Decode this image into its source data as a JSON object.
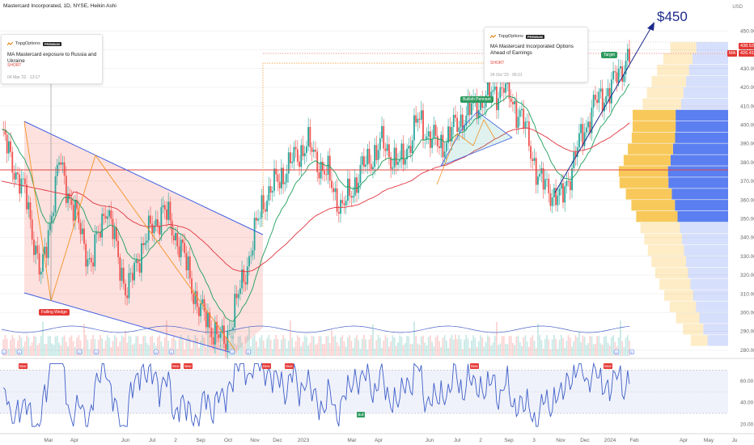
{
  "header": {
    "title": "Mastercard Incorporated, 1D, NYSE, Heikin Ashi",
    "currency": "USD"
  },
  "cards": [
    {
      "brand": "TopgOptions",
      "badge": "PREMIUM",
      "title": "MA Mastercard exposure to Russia and Ukraine",
      "side": "SHORT",
      "date": "04 Mar '22 · 13:17"
    },
    {
      "brand": "TopgOptions",
      "badge": "PREMIUM",
      "title": "MA Mastercard Incorporated Options Ahead of Earnings",
      "side": "SHORT",
      "date": "24 Oct '23 · 09:21"
    }
  ],
  "annotations": {
    "target_price": "$450",
    "falling_wedge": "Falling Wedge",
    "bullish_pennant": "Bullish Pennant",
    "target": "Target"
  },
  "price_tags": {
    "last": "438.53",
    "ma_label": "MA",
    "ma_value": "426.41"
  },
  "rsi_tags": {
    "bear": "Bear",
    "bull": "Bull"
  },
  "colors": {
    "up": "#26a69a",
    "down": "#ef5350",
    "ema_short": "#1b9e5a",
    "ema_long": "#e0343d",
    "wedge": "#3f5fe0",
    "zigzag": "#f39221",
    "rsi": "#3f5fc8",
    "vp_up": "#5b7ff0",
    "vp_down": "#f8c95a"
  },
  "chart_data": [
    {
      "type": "candlestick",
      "title": "Mastercard Incorporated, 1D, NYSE, Heikin Ashi",
      "x_ticks": [
        "Mar",
        "Apr",
        "Jun",
        "Jul",
        "2",
        "Sep",
        "Oct",
        "Nov",
        "Dec",
        "2023",
        "Mar",
        "Apr",
        "Jun",
        "Jul",
        "2",
        "Sep",
        "3",
        "Nov",
        "Dec",
        "2024",
        "Feb",
        "Apr",
        "May",
        "Ju"
      ],
      "y_ticks": [
        280,
        290,
        300,
        310,
        320,
        330,
        340,
        350,
        360,
        370,
        380,
        390,
        400,
        410,
        420,
        430,
        440,
        450
      ],
      "ylim": [
        276,
        457
      ],
      "price_path": {
        "x_index": [
          0,
          14,
          22,
          32,
          50,
          58,
          70,
          78,
          90,
          100,
          110,
          124,
          134,
          146,
          160,
          170,
          182,
          190,
          200,
          212,
          222,
          232,
          244,
          258,
          266,
          280,
          290,
          300,
          312,
          322,
          330,
          340,
          350
        ],
        "close": [
          395,
          360,
          318,
          380,
          325,
          358,
          310,
          335,
          355,
          335,
          302,
          283,
          315,
          360,
          378,
          390,
          372,
          355,
          375,
          390,
          378,
          402,
          388,
          405,
          412,
          420,
          404,
          370,
          360,
          390,
          410,
          420,
          438
        ]
      },
      "last_price": 438.53,
      "ma_value": 426.41,
      "horizontal_level": 376,
      "target_price": 450
    },
    {
      "type": "line",
      "name": "RSI",
      "y_ticks": [
        20,
        40,
        60
      ],
      "ylim": [
        12,
        80
      ],
      "bands": [
        30,
        70
      ],
      "midline": 50
    }
  ]
}
